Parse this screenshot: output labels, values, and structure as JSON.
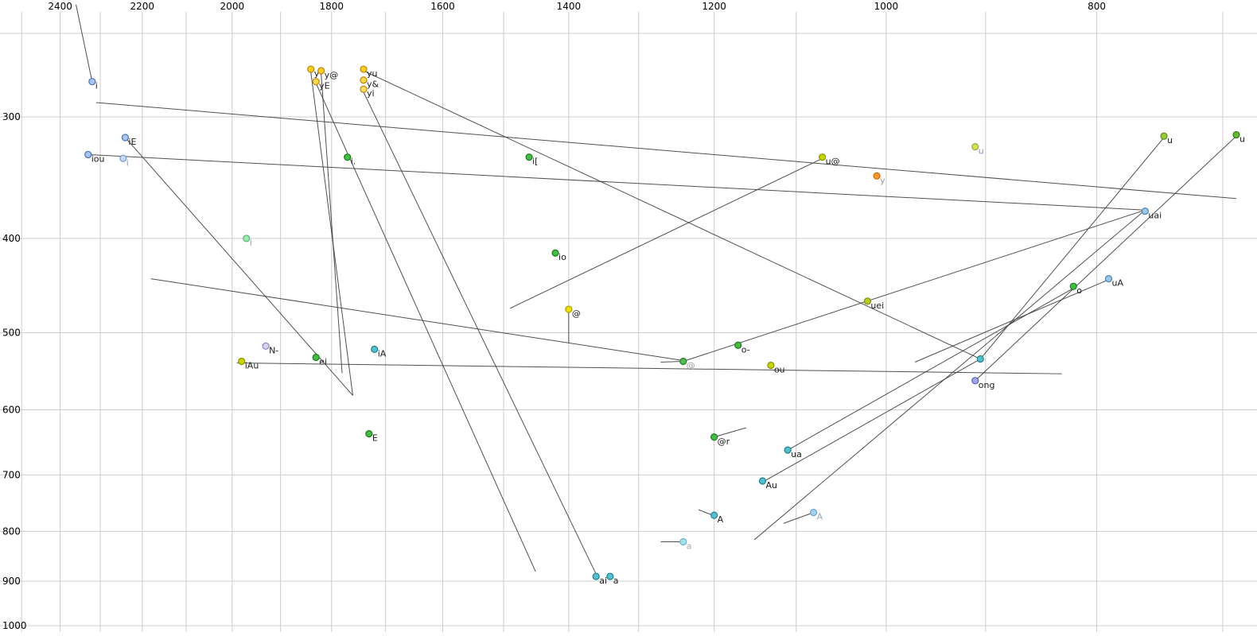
{
  "chart_data": {
    "type": "scatter",
    "title": "",
    "x_axis": {
      "label": "",
      "scale": "log",
      "reversed": true,
      "tick_values": [
        2400,
        2200,
        2000,
        1800,
        1600,
        1400,
        1200,
        1000,
        800
      ],
      "grid_values": [
        2500,
        2400,
        2300,
        2200,
        2100,
        2000,
        1900,
        1800,
        1700,
        1600,
        1500,
        1400,
        1300,
        1200,
        1100,
        1000,
        900,
        800,
        700
      ],
      "range": [
        2560,
        680
      ]
    },
    "y_axis": {
      "label": "",
      "scale": "log",
      "tick_values": [
        300,
        400,
        500,
        600,
        700,
        800,
        900,
        1000
      ],
      "grid_values": [
        300,
        400,
        500,
        600,
        700,
        800,
        900,
        1000
      ],
      "range": [
        245,
        1030
      ]
    },
    "points": [
      {
        "label": "i",
        "f2": 2320,
        "f1": 276,
        "fill": "#a6c8f0",
        "stroke": "#4a6fb5",
        "label_color": "#1a1a1a"
      },
      {
        "label": "iE",
        "f2": 2240,
        "f1": 315,
        "fill": "#a6c8f0",
        "stroke": "#4a6fb5",
        "label_color": "#1a1a1a"
      },
      {
        "label": "iou",
        "f2": 2330,
        "f1": 328,
        "fill": "#a6c8f0",
        "stroke": "#4a6fb5",
        "label_color": "#1a1a1a"
      },
      {
        "label": "i",
        "f2": 2245,
        "f1": 331,
        "fill": "#c2d8f5",
        "stroke": "#7a9cd0",
        "label_color": "#8d9ab8"
      },
      {
        "label": "y",
        "f2": 1840,
        "f1": 268,
        "fill": "#ffcc22",
        "stroke": "#b8860b",
        "label_color": "#1a1a1a"
      },
      {
        "label": "y@",
        "f2": 1820,
        "f1": 269,
        "fill": "#ffcc22",
        "stroke": "#b8860b",
        "label_color": "#1a1a1a"
      },
      {
        "label": "yE",
        "f2": 1830,
        "f1": 276,
        "fill": "#ffd94d",
        "stroke": "#b8860b",
        "label_color": "#1a1a1a"
      },
      {
        "label": "yu",
        "f2": 1740,
        "f1": 268,
        "fill": "#ffcc22",
        "stroke": "#b8860b",
        "label_color": "#1a1a1a"
      },
      {
        "label": "y&",
        "f2": 1740,
        "f1": 275,
        "fill": "#ffd94d",
        "stroke": "#b8860b",
        "label_color": "#1a1a1a"
      },
      {
        "label": "yi",
        "f2": 1740,
        "f1": 281,
        "fill": "#ffe066",
        "stroke": "#b8860b",
        "label_color": "#1a1a1a"
      },
      {
        "label": "i.",
        "f2": 1770,
        "f1": 330,
        "fill": "#44bb44",
        "stroke": "#1d7a1d",
        "label_color": "#1a1a1a"
      },
      {
        "label": "i[",
        "f2": 1460,
        "f1": 330,
        "fill": "#44bb44",
        "stroke": "#1d7a1d",
        "label_color": "#1a1a1a"
      },
      {
        "label": "u@",
        "f2": 1070,
        "f1": 330,
        "fill": "#c8d400",
        "stroke": "#8a9400",
        "label_color": "#1a1a1a"
      },
      {
        "label": "y",
        "f2": 1010,
        "f1": 345,
        "fill": "#ff9933",
        "stroke": "#cc6600",
        "label_color": "#9a9a9a"
      },
      {
        "label": "u",
        "f2": 910,
        "f1": 322,
        "fill": "#d4e157",
        "stroke": "#9aa83a",
        "label_color": "#9a8ec0"
      },
      {
        "label": "u",
        "f2": 745,
        "f1": 314,
        "fill": "#9ccc3c",
        "stroke": "#5a8a1a",
        "label_color": "#1a1a1a"
      },
      {
        "label": "u",
        "f2": 690,
        "f1": 313,
        "fill": "#66bb33",
        "stroke": "#2a7a12",
        "label_color": "#1a1a1a"
      },
      {
        "label": "uai",
        "f2": 760,
        "f1": 375,
        "fill": "#9cc8e8",
        "stroke": "#4a85b5",
        "label_color": "#1a1a1a"
      },
      {
        "label": "i",
        "f2": 1970,
        "f1": 400,
        "fill": "#9ce8b0",
        "stroke": "#55b577",
        "label_color": "#8aab97"
      },
      {
        "label": "io",
        "f2": 1420,
        "f1": 414,
        "fill": "#44bb44",
        "stroke": "#1d7a1d",
        "label_color": "#1a1a1a"
      },
      {
        "label": "@",
        "f2": 1400,
        "f1": 473,
        "fill": "#f0e000",
        "stroke": "#a89c00",
        "label_color": "#1a1a1a"
      },
      {
        "label": "uei",
        "f2": 1020,
        "f1": 464,
        "fill": "#b8cc22",
        "stroke": "#7a8a10",
        "label_color": "#1a1a1a"
      },
      {
        "label": "o",
        "f2": 820,
        "f1": 448,
        "fill": "#44bb44",
        "stroke": "#1d7a1d",
        "label_color": "#1a1a1a"
      },
      {
        "label": "uA",
        "f2": 790,
        "f1": 440,
        "fill": "#9cc8e8",
        "stroke": "#4a85b5",
        "label_color": "#1a1a1a"
      },
      {
        "label": "N-",
        "f2": 1930,
        "f1": 516,
        "fill": "#d8d4f0",
        "stroke": "#8a80c0",
        "label_color": "#1a1a1a"
      },
      {
        "label": "iA",
        "f2": 1720,
        "f1": 520,
        "fill": "#55c0cc",
        "stroke": "#22808c",
        "label_color": "#1a1a1a"
      },
      {
        "label": "ei",
        "f2": 1830,
        "f1": 530,
        "fill": "#44bb44",
        "stroke": "#1d7a1d",
        "label_color": "#1a1a1a"
      },
      {
        "label": "iAu",
        "f2": 1980,
        "f1": 535,
        "fill": "#c8d400",
        "stroke": "#8a9400",
        "label_color": "#1a1a1a"
      },
      {
        "label": "@",
        "f2": 1240,
        "f1": 535,
        "fill": "#55bb55",
        "stroke": "#2a7a2a",
        "label_color": "#9a9a9a"
      },
      {
        "label": "ou",
        "f2": 1130,
        "f1": 540,
        "fill": "#c8d400",
        "stroke": "#8a9400",
        "label_color": "#1a1a1a"
      },
      {
        "label": "",
        "f2": 905,
        "f1": 532,
        "fill": "#55c0cc",
        "stroke": "#22808c",
        "label_color": "#1a1a1a"
      },
      {
        "label": "ong",
        "f2": 910,
        "f1": 560,
        "fill": "#a0a8e8",
        "stroke": "#5560b5",
        "label_color": "#1a1a1a"
      },
      {
        "label": "E",
        "f2": 1730,
        "f1": 635,
        "fill": "#44bb44",
        "stroke": "#1d7a1d",
        "label_color": "#1a1a1a"
      },
      {
        "label": "o-",
        "f2": 1170,
        "f1": 515,
        "fill": "#44bb44",
        "stroke": "#1d7a1d",
        "label_color": "#1a1a1a"
      },
      {
        "label": "@r",
        "f2": 1200,
        "f1": 640,
        "fill": "#44bb44",
        "stroke": "#1d7a1d",
        "label_color": "#1a1a1a"
      },
      {
        "label": "ua",
        "f2": 1110,
        "f1": 660,
        "fill": "#55c0cc",
        "stroke": "#22808c",
        "label_color": "#1a1a1a"
      },
      {
        "label": "Au",
        "f2": 1140,
        "f1": 710,
        "fill": "#55c0cc",
        "stroke": "#22808c",
        "label_color": "#1a1a1a"
      },
      {
        "label": "A",
        "f2": 1200,
        "f1": 770,
        "fill": "#55c0cc",
        "stroke": "#22808c",
        "label_color": "#1a1a1a"
      },
      {
        "label": "A",
        "f2": 1080,
        "f1": 765,
        "fill": "#a8d4f0",
        "stroke": "#6aa0cc",
        "label_color": "#9aaabb"
      },
      {
        "label": "a",
        "f2": 1240,
        "f1": 820,
        "fill": "#a8e0f0",
        "stroke": "#6ab0cc",
        "label_color": "#9aaabb"
      },
      {
        "label": "ai",
        "f2": 1360,
        "f1": 890,
        "fill": "#55c0cc",
        "stroke": "#22808c",
        "label_color": "#1a1a1a"
      },
      {
        "label": "a",
        "f2": 1340,
        "f1": 890,
        "fill": "#55c0cc",
        "stroke": "#22808c",
        "label_color": "#1a1a1a"
      }
    ],
    "segments": [
      [
        2360,
        230,
        2320,
        276
      ],
      [
        2310,
        290,
        690,
        364
      ],
      [
        2330,
        328,
        760,
        374
      ],
      [
        2240,
        315,
        1760,
        580
      ],
      [
        1840,
        270,
        1760,
        580
      ],
      [
        1820,
        271,
        1780,
        550
      ],
      [
        1830,
        277,
        1450,
        880
      ],
      [
        1740,
        283,
        1360,
        885
      ],
      [
        1740,
        269,
        905,
        532
      ],
      [
        1490,
        472,
        1070,
        331
      ],
      [
        2180,
        440,
        1240,
        534
      ],
      [
        1990,
        537,
        830,
        551
      ],
      [
        760,
        374,
        1150,
        816
      ],
      [
        790,
        441,
        970,
        536
      ],
      [
        690,
        314,
        910,
        560
      ],
      [
        745,
        315,
        905,
        532
      ],
      [
        820,
        450,
        1110,
        660
      ],
      [
        1240,
        535,
        760,
        374
      ],
      [
        1400,
        475,
        1400,
        512
      ],
      [
        1270,
        536,
        1240,
        535
      ],
      [
        1220,
        760,
        1200,
        771
      ],
      [
        1115,
        785,
        1080,
        765
      ],
      [
        1270,
        820,
        1240,
        820
      ],
      [
        1200,
        640,
        1160,
        626
      ],
      [
        905,
        532,
        1140,
        712
      ]
    ],
    "colors": {
      "background": "#ffffff",
      "grid": "#cccccc",
      "segment": "#3d3d3d",
      "tick_label": "#000000"
    }
  }
}
